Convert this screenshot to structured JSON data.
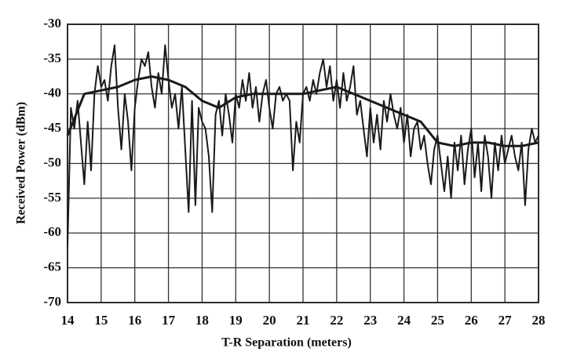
{
  "chart_data": {
    "type": "line",
    "xlabel": "T-R Separation (meters)",
    "ylabel": "Received Power (dBm)",
    "xlim": [
      14,
      28
    ],
    "xticks": [
      14,
      15,
      16,
      17,
      18,
      19,
      20,
      21,
      22,
      23,
      24,
      25,
      26,
      27,
      28
    ],
    "ylim": [
      -70,
      -30
    ],
    "yticks": [
      -70,
      -65,
      -60,
      -55,
      -50,
      -45,
      -40,
      -35,
      -30
    ],
    "grid": true,
    "series": [
      {
        "color": "#1a1a1a",
        "x": [
          14.0,
          14.1,
          14.2,
          14.3,
          14.4,
          14.5,
          14.6,
          14.7,
          14.8,
          14.9,
          15.0,
          15.1,
          15.2,
          15.3,
          15.4,
          15.5,
          15.6,
          15.7,
          15.8,
          15.9,
          16.0,
          16.1,
          16.2,
          16.3,
          16.4,
          16.5,
          16.6,
          16.7,
          16.8,
          16.9,
          17.0,
          17.1,
          17.2,
          17.3,
          17.4,
          17.5,
          17.6,
          17.7,
          17.8,
          17.9,
          18.0,
          18.1,
          18.2,
          18.3,
          18.4,
          18.5,
          18.6,
          18.7,
          18.8,
          18.9,
          19.0,
          19.1,
          19.2,
          19.3,
          19.4,
          19.5,
          19.6,
          19.7,
          19.8,
          19.9,
          20.0,
          20.1,
          20.2,
          20.3,
          20.4,
          20.5,
          20.6,
          20.7,
          20.8,
          20.9,
          21.0,
          21.1,
          21.2,
          21.3,
          21.4,
          21.5,
          21.6,
          21.7,
          21.8,
          21.9,
          22.0,
          22.1,
          22.2,
          22.3,
          22.4,
          22.5,
          22.6,
          22.7,
          22.8,
          22.9,
          23.0,
          23.1,
          23.2,
          23.3,
          23.4,
          23.5,
          23.6,
          23.7,
          23.8,
          23.9,
          24.0,
          24.1,
          24.2,
          24.3,
          24.4,
          24.5,
          24.6,
          24.7,
          24.8,
          24.9,
          25.0,
          25.1,
          25.2,
          25.3,
          25.4,
          25.5,
          25.6,
          25.7,
          25.8,
          25.9,
          26.0,
          26.1,
          26.2,
          26.3,
          26.4,
          26.5,
          26.6,
          26.7,
          26.8,
          26.9,
          27.0,
          27.1,
          27.2,
          27.3,
          27.4,
          27.5,
          27.6,
          27.7,
          27.8,
          27.9,
          28.0
        ],
        "values": [
          -62,
          -42,
          -45,
          -41,
          -47,
          -53,
          -44,
          -51,
          -40,
          -36,
          -39,
          -38,
          -41,
          -36,
          -33,
          -42,
          -48,
          -40,
          -44,
          -51,
          -42,
          -38,
          -35,
          -36,
          -34,
          -39,
          -42,
          -37,
          -40,
          -33,
          -38,
          -42,
          -40,
          -45,
          -39,
          -48,
          -57,
          -41,
          -56,
          -42,
          -44,
          -45,
          -49,
          -57,
          -43,
          -41,
          -46,
          -40,
          -43,
          -47,
          -40,
          -42,
          -38,
          -41,
          -37,
          -42,
          -39,
          -44,
          -40,
          -38,
          -42,
          -45,
          -40,
          -39,
          -41,
          -40,
          -41,
          -51,
          -44,
          -47,
          -40,
          -39,
          -41,
          -38,
          -40,
          -37,
          -35,
          -39,
          -36,
          -41,
          -38,
          -42,
          -37,
          -41,
          -39,
          -36,
          -43,
          -41,
          -45,
          -49,
          -42,
          -47,
          -43,
          -48,
          -41,
          -44,
          -40,
          -43,
          -45,
          -42,
          -47,
          -43,
          -49,
          -45,
          -44,
          -48,
          -46,
          -50,
          -53,
          -48,
          -46,
          -50,
          -54,
          -49,
          -55,
          -47,
          -51,
          -46,
          -53,
          -48,
          -45,
          -52,
          -47,
          -54,
          -46,
          -49,
          -55,
          -47,
          -51,
          -46,
          -50,
          -48,
          -46,
          -49,
          -51,
          -47,
          -56,
          -48,
          -45,
          -47,
          -46
        ]
      },
      {
        "color": "#1a1a1a",
        "x": [
          14.0,
          14.5,
          15.0,
          15.5,
          16.0,
          16.5,
          17.0,
          17.5,
          18.0,
          18.5,
          19.0,
          19.5,
          20.0,
          20.5,
          21.0,
          21.5,
          22.0,
          22.5,
          23.0,
          23.5,
          24.0,
          24.5,
          25.0,
          25.5,
          26.0,
          26.5,
          27.0,
          27.5,
          28.0
        ],
        "values": [
          -46,
          -40,
          -39.5,
          -39,
          -38,
          -37.5,
          -38,
          -39,
          -41,
          -42,
          -40.5,
          -40,
          -40,
          -40,
          -40,
          -39.5,
          -39,
          -40,
          -41,
          -42,
          -43,
          -44,
          -47,
          -47.5,
          -47,
          -47,
          -47.5,
          -47.5,
          -47
        ]
      }
    ]
  }
}
